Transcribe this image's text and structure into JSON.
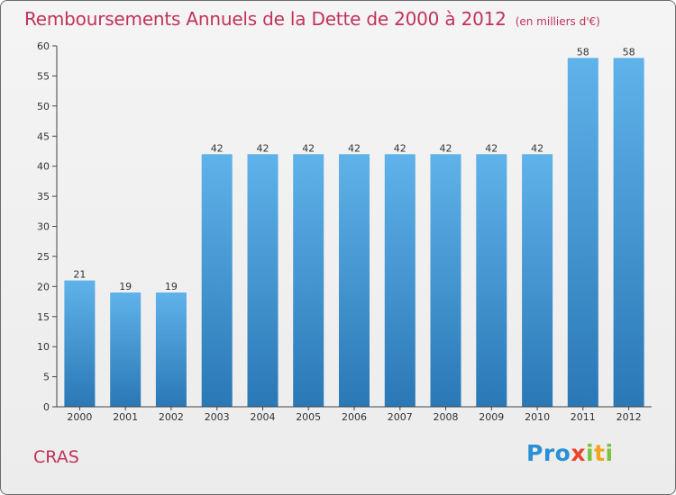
{
  "title": {
    "main": "Remboursements Annuels de la Dette de 2000 à 2012",
    "unit": "(en milliers d'€)"
  },
  "commune": "CRAS",
  "logo": {
    "letters": [
      "P",
      "r",
      "o",
      "x",
      "i",
      "t",
      "i"
    ],
    "colors": [
      "#2b8fd6",
      "#2b8fd6",
      "#2b8fd6",
      "#e8452c",
      "#7cc242",
      "#f2a41c",
      "#7cc242"
    ]
  },
  "colors": {
    "title": "#c0335b",
    "bar_light": "#5fb2ea",
    "bar_dark": "#2a78b6",
    "axis": "#444444"
  },
  "chart_data": {
    "type": "bar",
    "categories": [
      "2000",
      "2001",
      "2002",
      "2003",
      "2004",
      "2005",
      "2006",
      "2007",
      "2008",
      "2009",
      "2010",
      "2011",
      "2012"
    ],
    "values": [
      21,
      19,
      19,
      42,
      42,
      42,
      42,
      42,
      42,
      42,
      42,
      58,
      58
    ],
    "ylim": [
      0,
      60
    ],
    "yticks": [
      0,
      5,
      10,
      15,
      20,
      25,
      30,
      35,
      40,
      45,
      50,
      55,
      60
    ],
    "grid": false,
    "data_labels": true
  }
}
